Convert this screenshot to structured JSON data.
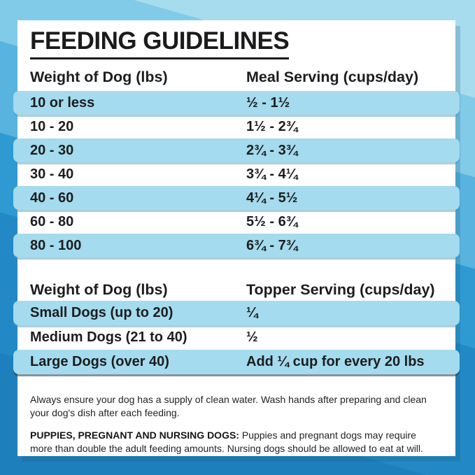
{
  "title": "FEEDING GUIDELINES",
  "meal_table": {
    "headers": {
      "weight": "Weight of Dog (lbs)",
      "serving": "Meal Serving (cups/day)"
    },
    "rows": [
      {
        "weight": "10 or less",
        "serving": "½ - 1½",
        "highlighted": true
      },
      {
        "weight": "10 - 20",
        "serving": "1½ - 2¾",
        "highlighted": false
      },
      {
        "weight": "20 - 30",
        "serving": "2¾ - 3¾",
        "highlighted": true
      },
      {
        "weight": "30 - 40",
        "serving": "3¾ - 4¼",
        "highlighted": false
      },
      {
        "weight": "40 - 60",
        "serving": "4¼ - 5½",
        "highlighted": true
      },
      {
        "weight": "60 - 80",
        "serving": "5½ - 6¾",
        "highlighted": false
      },
      {
        "weight": "80 - 100",
        "serving": "6¾ - 7¾",
        "highlighted": true
      }
    ]
  },
  "topper_table": {
    "headers": {
      "weight": "Weight of Dog (lbs)",
      "serving": "Topper Serving (cups/day)"
    },
    "rows": [
      {
        "weight": "Small Dogs (up to 20)",
        "serving": "¼",
        "highlighted": true
      },
      {
        "weight": "Medium Dogs (21 to 40)",
        "serving": "½",
        "highlighted": false
      },
      {
        "weight": "Large Dogs (over 40)",
        "serving": "Add ¼ cup for every 20 lbs",
        "highlighted": true
      }
    ]
  },
  "notes": {
    "water": {
      "line1": "Always ensure your dog has a supply of clean water. Wash hands after preparing and clean",
      "line2": "your dog's dish after each feeding."
    },
    "puppies": {
      "label": "PUPPIES, PREGNANT AND NURSING DOGS:",
      "line1": "Puppies and pregnant dogs may require",
      "line2": "more than double the adult feeding amounts. Nursing dogs should be allowed to eat at will."
    }
  },
  "colors": {
    "highlight_row": "#a4dbee",
    "card_background": "#ffffff",
    "text": "#1d1d1d",
    "background_bands": [
      "#a7dcee",
      "#82cbe8",
      "#58b4df",
      "#2f9ad2",
      "#2389c6",
      "#1e7fbd"
    ]
  }
}
